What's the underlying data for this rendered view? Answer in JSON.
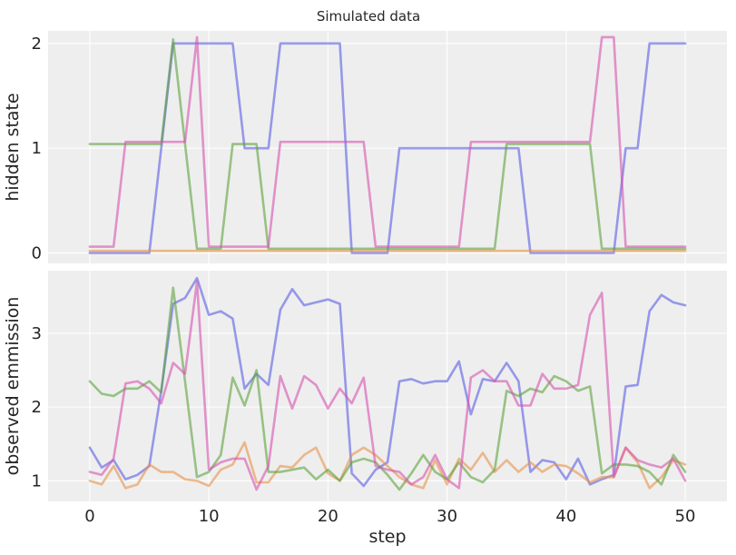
{
  "figure": {
    "title": "Simulated data",
    "xlabel": "step"
  },
  "chart_data": [
    {
      "type": "line",
      "ylabel": "hidden state",
      "xlim": [
        -3.5,
        53.5
      ],
      "ylim": [
        -0.1,
        2.12
      ],
      "xticks": [
        0,
        10,
        20,
        30,
        40,
        50
      ],
      "yticks": [
        0,
        1,
        2
      ],
      "grid": true,
      "colors": [
        "#5a5de6",
        "#e8924a",
        "#5ea33e",
        "#d653b1"
      ],
      "series": [
        {
          "values": [
            0,
            0,
            0,
            0,
            0,
            0,
            1,
            2,
            2,
            2,
            2,
            2,
            2,
            1,
            1,
            1,
            2,
            2,
            2,
            2,
            2,
            2,
            0,
            0,
            0,
            0,
            1,
            1,
            1,
            1,
            1,
            1,
            1,
            1,
            1,
            1,
            1,
            0,
            0,
            0,
            0,
            0,
            0,
            0,
            0,
            1,
            1,
            2,
            2,
            2,
            2
          ]
        },
        {
          "values": [
            0.02,
            0.02,
            0.02,
            0.02,
            0.02,
            0.02,
            0.02,
            0.02,
            0.02,
            0.02,
            0.02,
            0.02,
            0.02,
            0.02,
            0.02,
            0.02,
            0.02,
            0.02,
            0.02,
            0.02,
            0.02,
            0.02,
            0.02,
            0.02,
            0.02,
            0.02,
            0.02,
            0.02,
            0.02,
            0.02,
            0.02,
            0.02,
            0.02,
            0.02,
            0.02,
            0.02,
            0.02,
            0.02,
            0.02,
            0.02,
            0.02,
            0.02,
            0.02,
            0.02,
            0.02,
            0.02,
            0.02,
            0.02,
            0.02,
            0.02,
            0.02
          ]
        },
        {
          "values": [
            1.04,
            1.04,
            1.04,
            1.04,
            1.04,
            1.04,
            1.04,
            2.04,
            1.04,
            0.04,
            0.04,
            0.04,
            1.04,
            1.04,
            1.04,
            0.04,
            0.04,
            0.04,
            0.04,
            0.04,
            0.04,
            0.04,
            0.04,
            0.04,
            0.04,
            0.04,
            0.04,
            0.04,
            0.04,
            0.04,
            0.04,
            0.04,
            0.04,
            0.04,
            0.04,
            1.04,
            1.04,
            1.04,
            1.04,
            1.04,
            1.04,
            1.04,
            1.04,
            0.04,
            0.04,
            0.04,
            0.04,
            0.04,
            0.04,
            0.04,
            0.04
          ]
        },
        {
          "values": [
            0.06,
            0.06,
            0.06,
            1.06,
            1.06,
            1.06,
            1.06,
            1.06,
            1.06,
            2.06,
            0.06,
            0.06,
            0.06,
            0.06,
            0.06,
            0.06,
            1.06,
            1.06,
            1.06,
            1.06,
            1.06,
            1.06,
            1.06,
            1.06,
            0.06,
            0.06,
            0.06,
            0.06,
            0.06,
            0.06,
            0.06,
            0.06,
            1.06,
            1.06,
            1.06,
            1.06,
            1.06,
            1.06,
            1.06,
            1.06,
            1.06,
            1.06,
            1.06,
            2.06,
            2.06,
            0.06,
            0.06,
            0.06,
            0.06,
            0.06,
            0.06
          ]
        }
      ]
    },
    {
      "type": "line",
      "ylabel": "observed emmission",
      "xlim": [
        -3.5,
        53.5
      ],
      "ylim": [
        0.72,
        3.85
      ],
      "xticks": [
        0,
        10,
        20,
        30,
        40,
        50
      ],
      "yticks": [
        1,
        2,
        3
      ],
      "grid": true,
      "colors": [
        "#5a5de6",
        "#e8924a",
        "#5ea33e",
        "#d653b1"
      ],
      "series": [
        {
          "values": [
            1.45,
            1.18,
            1.28,
            1.02,
            1.08,
            1.2,
            2.22,
            3.4,
            3.48,
            3.75,
            3.25,
            3.3,
            3.2,
            2.25,
            2.45,
            2.3,
            3.32,
            3.6,
            3.38,
            3.42,
            3.46,
            3.4,
            1.1,
            0.93,
            1.15,
            1.25,
            2.35,
            2.38,
            2.32,
            2.35,
            2.35,
            2.62,
            1.9,
            2.38,
            2.35,
            2.6,
            2.35,
            1.12,
            1.28,
            1.25,
            1.02,
            1.3,
            0.95,
            1.02,
            1.08,
            2.28,
            2.3,
            3.3,
            3.52,
            3.42,
            3.38
          ]
        },
        {
          "values": [
            1.0,
            0.95,
            1.2,
            0.9,
            0.95,
            1.22,
            1.12,
            1.12,
            1.02,
            1.0,
            0.93,
            1.15,
            1.22,
            1.52,
            0.98,
            0.98,
            1.2,
            1.18,
            1.35,
            1.45,
            1.1,
            1.0,
            1.35,
            1.45,
            1.35,
            1.2,
            1.05,
            0.95,
            0.9,
            1.28,
            0.95,
            1.3,
            1.15,
            1.38,
            1.12,
            1.28,
            1.12,
            1.25,
            1.12,
            1.22,
            1.2,
            1.1,
            0.98,
            1.05,
            1.05,
            1.45,
            1.25,
            0.9,
            1.05,
            1.28,
            1.22
          ]
        },
        {
          "values": [
            2.35,
            2.18,
            2.15,
            2.25,
            2.25,
            2.35,
            2.2,
            3.62,
            2.35,
            1.05,
            1.12,
            1.35,
            2.4,
            2.02,
            2.5,
            1.12,
            1.12,
            1.15,
            1.18,
            1.02,
            1.15,
            1.0,
            1.25,
            1.3,
            1.25,
            1.08,
            0.88,
            1.1,
            1.35,
            1.12,
            1.02,
            1.25,
            1.05,
            0.98,
            1.15,
            2.22,
            2.15,
            2.25,
            2.2,
            2.42,
            2.35,
            2.22,
            2.28,
            1.1,
            1.22,
            1.22,
            1.2,
            1.12,
            0.95,
            1.35,
            1.12
          ]
        },
        {
          "values": [
            1.12,
            1.08,
            1.3,
            2.32,
            2.35,
            2.25,
            2.05,
            2.6,
            2.45,
            3.7,
            1.15,
            1.25,
            1.3,
            1.3,
            0.88,
            1.2,
            2.42,
            1.98,
            2.42,
            2.3,
            1.98,
            2.25,
            2.05,
            2.4,
            1.2,
            1.15,
            1.12,
            0.95,
            1.05,
            1.35,
            1.02,
            0.9,
            2.4,
            2.5,
            2.35,
            2.35,
            2.02,
            2.02,
            2.45,
            2.25,
            2.25,
            2.3,
            3.25,
            3.55,
            1.05,
            1.45,
            1.28,
            1.22,
            1.18,
            1.3,
            1.0
          ]
        }
      ]
    }
  ]
}
